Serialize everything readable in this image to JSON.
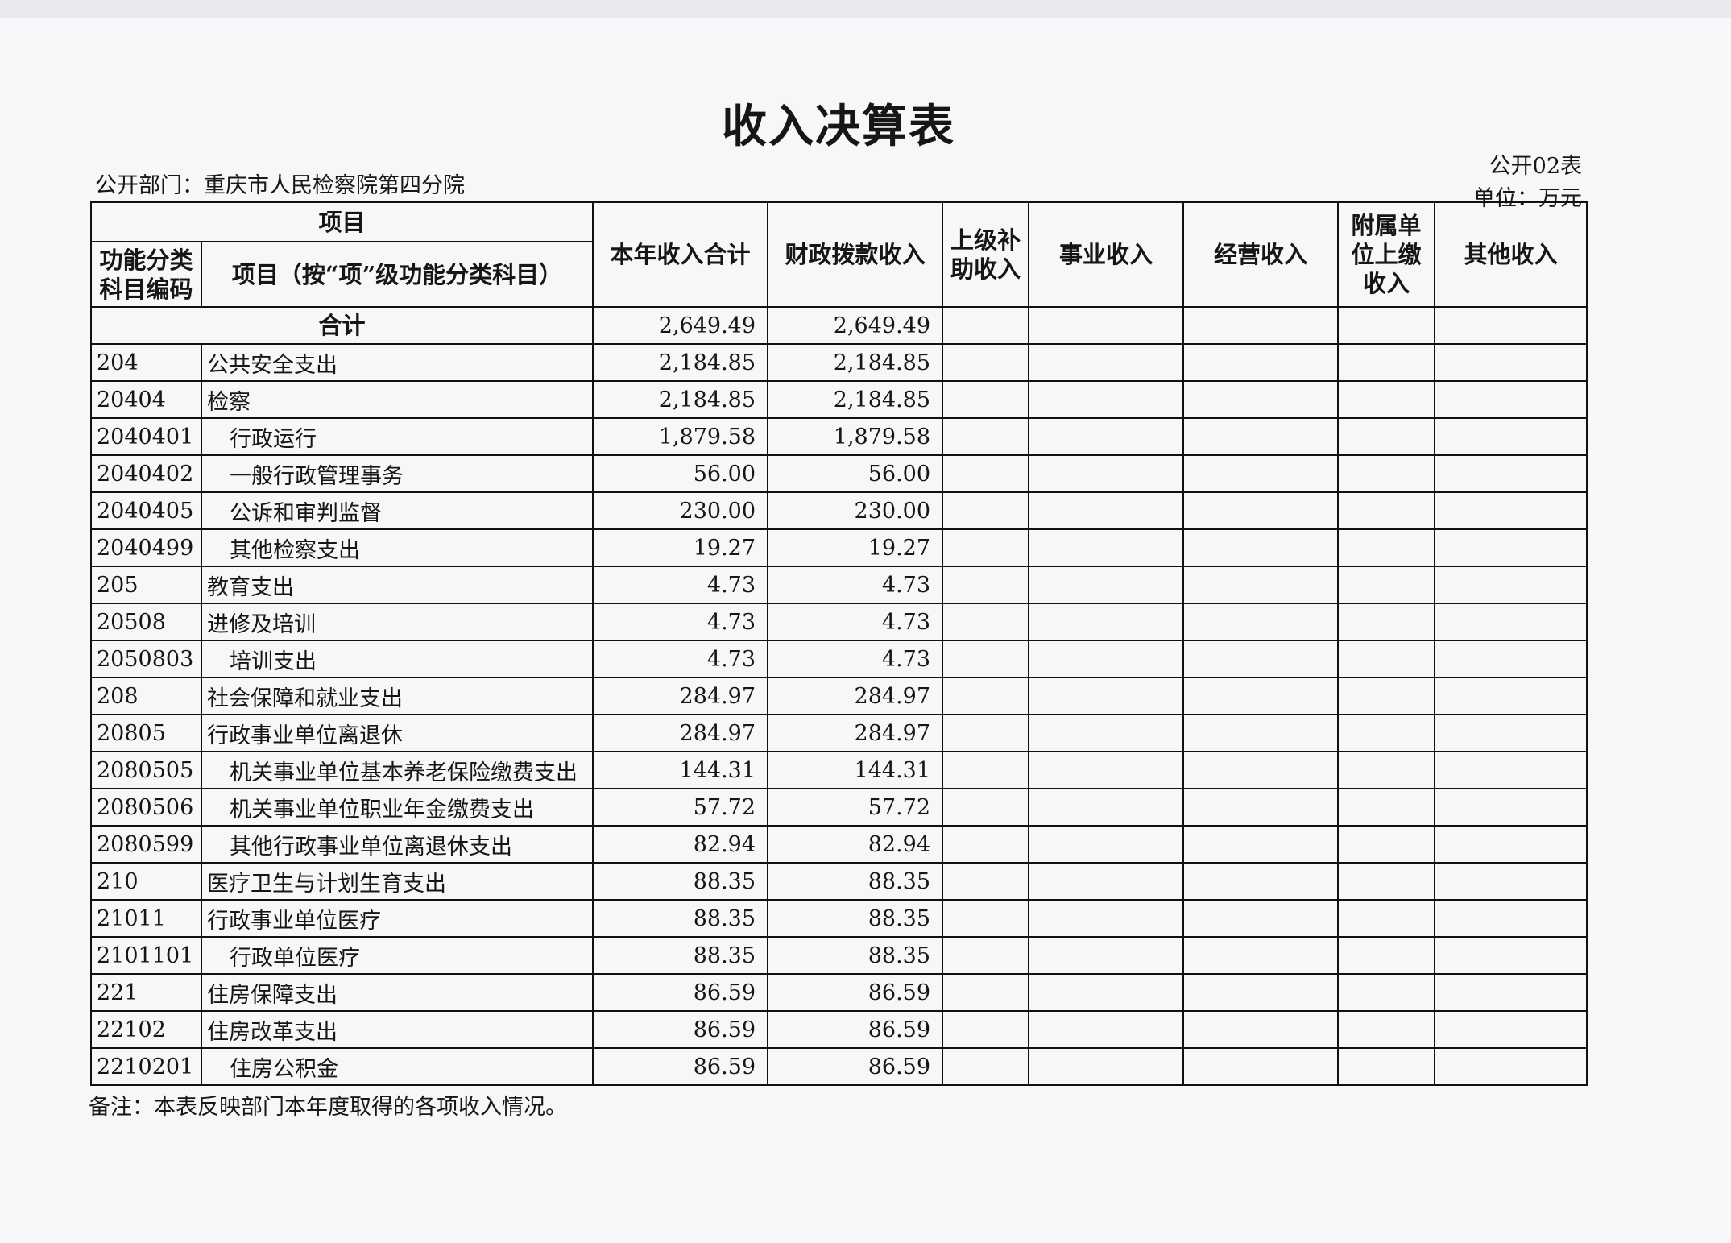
{
  "title": "收入决算表",
  "department": "公开部门：重庆市人民检察院第四分院",
  "form_no": "公开02表",
  "unit": "单位：万元",
  "headers": {
    "project_group": "项目",
    "code": "功能分类科目编码",
    "name": "项目（按“项”级功能分类科目）",
    "total": "本年收入合计",
    "fiscal": "财政拨款收入",
    "superior": "上级补助收入",
    "business": "事业收入",
    "operating": "经营收入",
    "affiliated": "附属单位上缴收入",
    "other": "其他收入"
  },
  "total_row": {
    "label": "合计",
    "total": "2,649.49",
    "fiscal": "2,649.49"
  },
  "rows": [
    {
      "code": "204",
      "name": "公共安全支出",
      "level": 1,
      "total": "2,184.85",
      "fiscal": "2,184.85"
    },
    {
      "code": "20404",
      "name": "检察",
      "level": 2,
      "total": "2,184.85",
      "fiscal": "2,184.85"
    },
    {
      "code": "2040401",
      "name": "行政运行",
      "level": 3,
      "total": "1,879.58",
      "fiscal": "1,879.58"
    },
    {
      "code": "2040402",
      "name": "一般行政管理事务",
      "level": 3,
      "total": "56.00",
      "fiscal": "56.00"
    },
    {
      "code": "2040405",
      "name": "公诉和审判监督",
      "level": 3,
      "total": "230.00",
      "fiscal": "230.00"
    },
    {
      "code": "2040499",
      "name": "其他检察支出",
      "level": 3,
      "total": "19.27",
      "fiscal": "19.27"
    },
    {
      "code": "205",
      "name": "教育支出",
      "level": 1,
      "total": "4.73",
      "fiscal": "4.73"
    },
    {
      "code": "20508",
      "name": "进修及培训",
      "level": 2,
      "total": "4.73",
      "fiscal": "4.73"
    },
    {
      "code": "2050803",
      "name": "培训支出",
      "level": 3,
      "total": "4.73",
      "fiscal": "4.73"
    },
    {
      "code": "208",
      "name": "社会保障和就业支出",
      "level": 1,
      "total": "284.97",
      "fiscal": "284.97"
    },
    {
      "code": "20805",
      "name": "行政事业单位离退休",
      "level": 2,
      "total": "284.97",
      "fiscal": "284.97"
    },
    {
      "code": "2080505",
      "name": "机关事业单位基本养老保险缴费支出",
      "level": 3,
      "total": "144.31",
      "fiscal": "144.31"
    },
    {
      "code": "2080506",
      "name": "机关事业单位职业年金缴费支出",
      "level": 3,
      "total": "57.72",
      "fiscal": "57.72"
    },
    {
      "code": "2080599",
      "name": "其他行政事业单位离退休支出",
      "level": 3,
      "total": "82.94",
      "fiscal": "82.94"
    },
    {
      "code": "210",
      "name": "医疗卫生与计划生育支出",
      "level": 1,
      "total": "88.35",
      "fiscal": "88.35"
    },
    {
      "code": "21011",
      "name": "行政事业单位医疗",
      "level": 2,
      "total": "88.35",
      "fiscal": "88.35"
    },
    {
      "code": "2101101",
      "name": "行政单位医疗",
      "level": 3,
      "total": "88.35",
      "fiscal": "88.35"
    },
    {
      "code": "221",
      "name": "住房保障支出",
      "level": 1,
      "total": "86.59",
      "fiscal": "86.59"
    },
    {
      "code": "22102",
      "name": "住房改革支出",
      "level": 2,
      "total": "86.59",
      "fiscal": "86.59"
    },
    {
      "code": "2210201",
      "name": "住房公积金",
      "level": 3,
      "total": "86.59",
      "fiscal": "86.59"
    }
  ],
  "note": "备注：本表反映部门本年度取得的各项收入情况。"
}
